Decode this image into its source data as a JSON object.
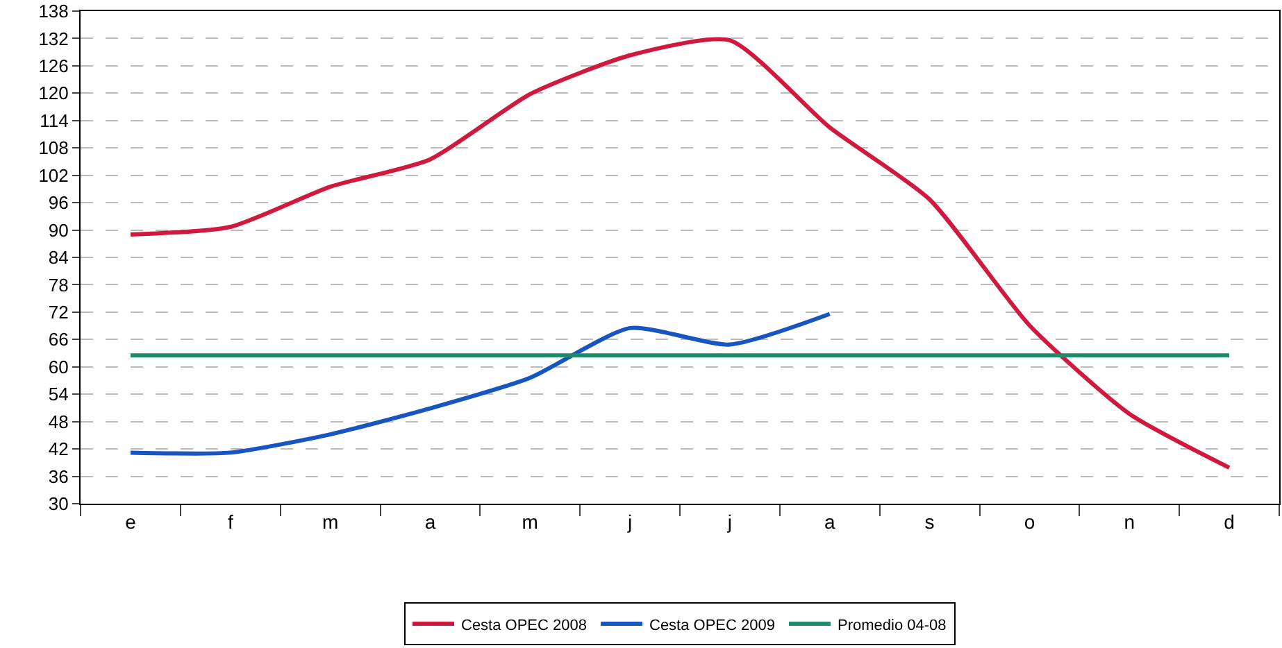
{
  "chart_data": {
    "type": "line",
    "categories": [
      "e",
      "f",
      "m",
      "a",
      "m",
      "j",
      "j",
      "a",
      "s",
      "o",
      "n",
      "d"
    ],
    "series": [
      {
        "name": "Cesta OPEC 2008",
        "color": "#d0193c",
        "values": [
          89,
          90.7,
          99.5,
          105.5,
          119.8,
          128.3,
          131.6,
          112.5,
          96.7,
          69.1,
          49.7,
          37.9
        ]
      },
      {
        "name": "Cesta OPEC 2009",
        "color": "#1755c0",
        "values": [
          41.2,
          41.2,
          45.2,
          50.9,
          57.6,
          68.5,
          64.9,
          71.6,
          null,
          null,
          null,
          null
        ]
      },
      {
        "name": "Promedio 04-08",
        "color": "#1e8c6a",
        "values": [
          62.5,
          62.5,
          62.5,
          62.5,
          62.5,
          62.5,
          62.5,
          62.5,
          62.5,
          62.5,
          62.5,
          62.5
        ]
      }
    ],
    "ylim": [
      30,
      138
    ],
    "yticks": [
      30,
      36,
      42,
      48,
      54,
      60,
      66,
      72,
      78,
      84,
      90,
      96,
      102,
      108,
      114,
      120,
      126,
      132,
      138
    ],
    "grid": "y",
    "legend": "bottom",
    "marker": "none",
    "line_style": "solid"
  }
}
